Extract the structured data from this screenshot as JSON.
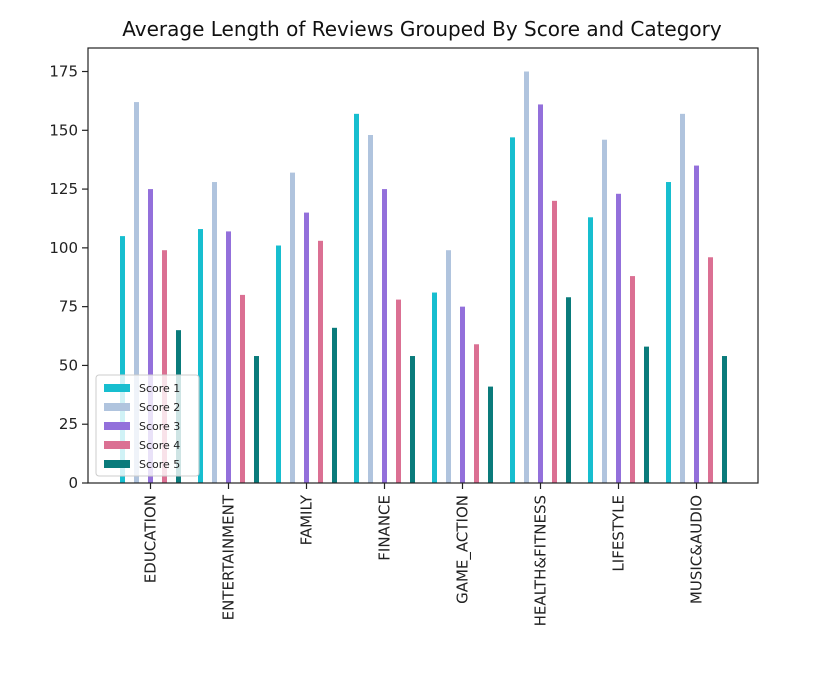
{
  "chart_data": {
    "type": "bar",
    "title": "Average Length of Reviews Grouped By Score and Category",
    "xlabel": "",
    "ylabel": "",
    "categories": [
      "EDUCATION",
      "ENTERTAINMENT",
      "FAMILY",
      "FINANCE",
      "GAME_ACTION",
      "HEALTH&FITNESS",
      "LIFESTYLE",
      "MUSIC&AUDIO"
    ],
    "series": [
      {
        "name": "Score 1",
        "color": "#17becf",
        "values": [
          105,
          108,
          101,
          157,
          81,
          147,
          113,
          128
        ]
      },
      {
        "name": "Score 2",
        "color": "#b0c4de",
        "values": [
          162,
          128,
          132,
          148,
          99,
          175,
          146,
          157
        ]
      },
      {
        "name": "Score 3",
        "color": "#9370db",
        "values": [
          125,
          107,
          115,
          125,
          75,
          161,
          123,
          135
        ]
      },
      {
        "name": "Score 4",
        "color": "#db7093",
        "values": [
          99,
          80,
          103,
          78,
          59,
          120,
          88,
          96
        ]
      },
      {
        "name": "Score 5",
        "color": "#0a7b7b",
        "values": [
          65,
          54,
          66,
          54,
          41,
          79,
          58,
          54
        ]
      }
    ],
    "ylim": [
      0,
      185
    ],
    "yticks": [
      0,
      25,
      50,
      75,
      100,
      125,
      150,
      175
    ],
    "legend_position": "lower-left",
    "grid": false
  }
}
